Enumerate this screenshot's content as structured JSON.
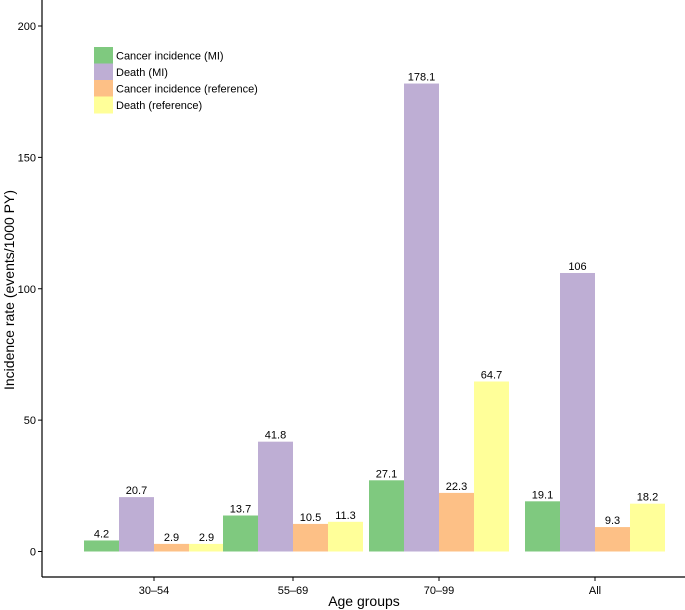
{
  "chart_data": {
    "type": "bar",
    "title": "",
    "xlabel": "Age groups",
    "ylabel": "Incidence rate (events/1000 PY)",
    "categories": [
      "30–54",
      "55–69",
      "70–99",
      "All"
    ],
    "ylim": [
      0,
      200
    ],
    "yticks": [
      0,
      50,
      100,
      150,
      200
    ],
    "legend_position": "top-left",
    "grid": false,
    "series": [
      {
        "name": "Cancer incidence (MI)",
        "color": "#7fc97f",
        "values": [
          4.2,
          13.7,
          27.1,
          19.1
        ],
        "labels": [
          "4.2",
          "13.7",
          "27.1",
          "19.1"
        ]
      },
      {
        "name": "Death (MI)",
        "color": "#beaed4",
        "values": [
          20.7,
          41.8,
          178.1,
          106
        ],
        "labels": [
          "20.7",
          "41.8",
          "178.1",
          "106"
        ]
      },
      {
        "name": "Cancer incidence (reference)",
        "color": "#fdc086",
        "values": [
          2.9,
          10.5,
          22.3,
          9.3
        ],
        "labels": [
          "2.9",
          "10.5",
          "22.3",
          "9.3"
        ]
      },
      {
        "name": "Death (reference)",
        "color": "#ffff99",
        "values": [
          2.9,
          11.3,
          64.7,
          18.2
        ],
        "labels": [
          "2.9",
          "11.3",
          "64.7",
          "18.2"
        ]
      }
    ]
  }
}
